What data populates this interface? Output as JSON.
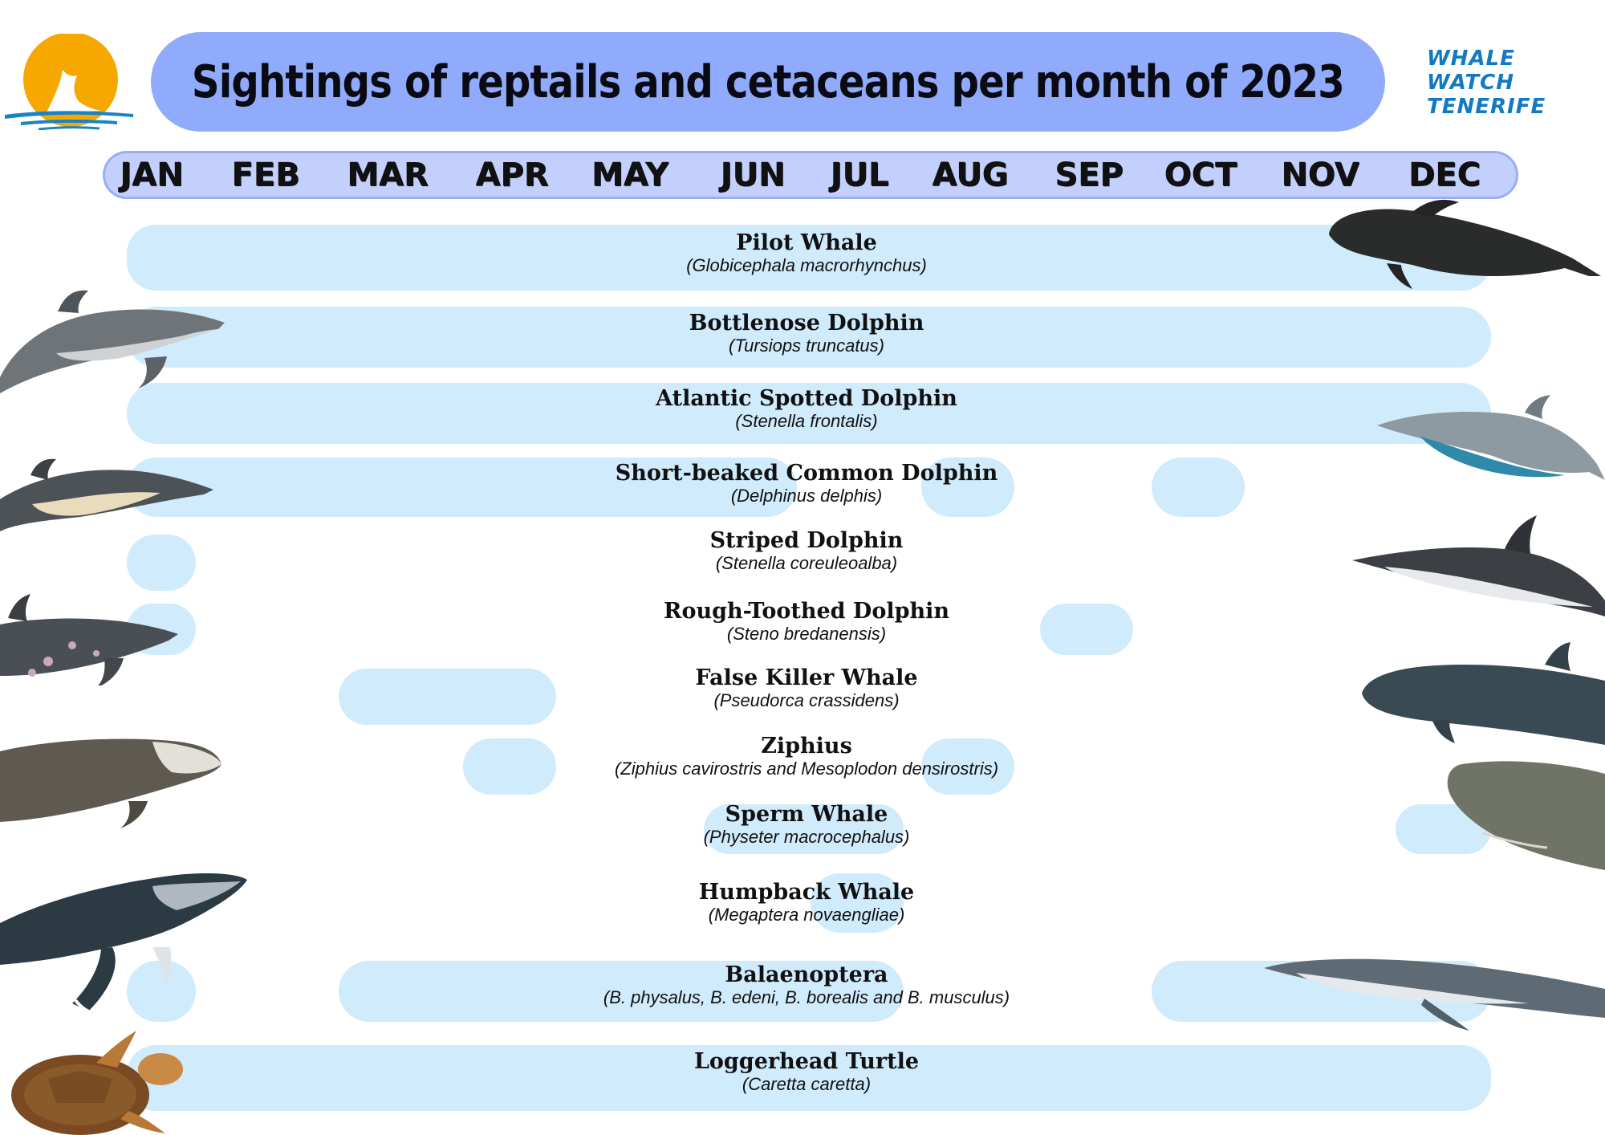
{
  "header": {
    "title": "Sightings of reptails and cetaceans per month of 2023",
    "brand_line1": "WHALE WATCH",
    "brand_line2": "TENERIFE"
  },
  "colors": {
    "title_bar": "#90aafc",
    "month_bar": "#c3d0fd",
    "presence_bar": "#cfebfc",
    "brand": "#1279c3",
    "logo_sun": "#f7a800",
    "logo_sea": "#1a83c5"
  },
  "chart_data": {
    "type": "table",
    "title": "Sightings of reptails and cetaceans per month of 2023",
    "months": [
      "JAN",
      "FEB",
      "MAR",
      "APR",
      "MAY",
      "JUN",
      "JUL",
      "AUG",
      "SEP",
      "OCT",
      "NOV",
      "DEC"
    ],
    "species": [
      {
        "common": "Pilot Whale",
        "scientific": "(Globicephala macrorhynchus)",
        "sighted_months": [
          "JAN",
          "FEB",
          "MAR",
          "APR",
          "MAY",
          "JUN",
          "JUL",
          "AUG",
          "SEP",
          "OCT",
          "NOV",
          "DEC"
        ]
      },
      {
        "common": "Bottlenose Dolphin",
        "scientific": "(Tursiops truncatus)",
        "sighted_months": [
          "JAN",
          "FEB",
          "MAR",
          "APR",
          "MAY",
          "JUN",
          "JUL",
          "AUG",
          "SEP",
          "OCT",
          "NOV",
          "DEC"
        ]
      },
      {
        "common": "Atlantic Spotted Dolphin",
        "scientific": "(Stenella frontalis)",
        "sighted_months": [
          "JAN",
          "FEB",
          "MAR",
          "APR",
          "MAY",
          "JUN",
          "JUL",
          "AUG",
          "SEP",
          "OCT",
          "NOV",
          "DEC"
        ]
      },
      {
        "common": "Short-beaked Common Dolphin",
        "scientific": "(Delphinus delphis)",
        "sighted_months": [
          "JAN",
          "FEB",
          "MAR",
          "APR",
          "MAY",
          "JUN",
          "AUG",
          "OCT"
        ]
      },
      {
        "common": "Striped Dolphin",
        "scientific": "(Stenella coreuleoalba)",
        "sighted_months": [
          "JAN"
        ]
      },
      {
        "common": "Rough-Toothed Dolphin",
        "scientific": "(Steno bredanensis)",
        "sighted_months": [
          "JAN",
          "SEP"
        ]
      },
      {
        "common": "False Killer Whale",
        "scientific": "(Pseudorca crassidens)",
        "sighted_months": [
          "MAR",
          "APR"
        ]
      },
      {
        "common": "Ziphius",
        "scientific": "(Ziphius cavirostris and Mesoplodon densirostris)",
        "sighted_months": [
          "APR",
          "AUG"
        ]
      },
      {
        "common": "Sperm Whale",
        "scientific": "(Physeter macrocephalus)",
        "sighted_months": [
          "JUN",
          "JUL",
          "DEC"
        ]
      },
      {
        "common": "Humpback Whale",
        "scientific": "(Megaptera novaengliae)",
        "sighted_months": [
          "JUL"
        ]
      },
      {
        "common": "Balaenoptera",
        "scientific": "(B. physalus, B. edeni, B. borealis and B. musculus)",
        "sighted_months": [
          "JAN",
          "MAR",
          "APR",
          "MAY",
          "JUN",
          "JUL",
          "OCT",
          "NOV",
          "DEC"
        ]
      },
      {
        "common": "Loggerhead Turtle",
        "scientific": "(Caretta caretta)",
        "sighted_months": [
          "JAN",
          "FEB",
          "MAR",
          "APR",
          "MAY",
          "JUN",
          "JUL",
          "AUG",
          "SEP",
          "OCT",
          "NOV",
          "DEC"
        ]
      }
    ]
  }
}
